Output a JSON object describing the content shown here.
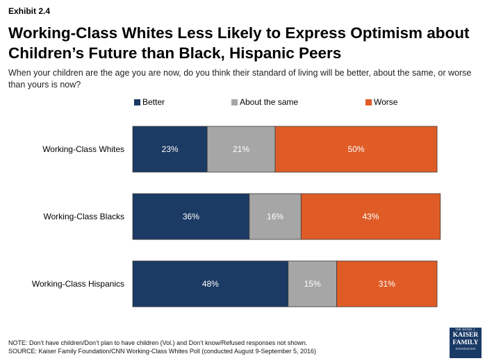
{
  "header": {
    "exhibit": "Exhibit 2.4",
    "title": "Working-Class Whites Less Likely to Express Optimism about Children’s Future than Black, Hispanic Peers",
    "subtitle": "When your children are the age you are now, do you think their standard of living will be better, about the same, or worse than yours is now?"
  },
  "legend": [
    {
      "label": "Better",
      "color": "#1b3a64"
    },
    {
      "label": "About the same",
      "color": "#a6a6a6"
    },
    {
      "label": "Worse",
      "color": "#e05c27"
    }
  ],
  "chart_data": {
    "type": "bar",
    "orientation": "horizontal",
    "stacked": true,
    "categories": [
      "Working-Class Whites",
      "Working-Class Blacks",
      "Working-Class Hispanics"
    ],
    "series": [
      {
        "name": "Better",
        "values": [
          23,
          36,
          48
        ],
        "color": "#1b3a64"
      },
      {
        "name": "About the same",
        "values": [
          21,
          16,
          15
        ],
        "color": "#a6a6a6"
      },
      {
        "name": "Worse",
        "values": [
          50,
          43,
          31
        ],
        "color": "#e05c27"
      }
    ],
    "value_suffix": "%",
    "legend_position": "top",
    "grid": false
  },
  "footnote": {
    "note": "NOTE: Don’t have children/Don’t plan to have children (Vol.) and Don’t know/Refused responses not shown.",
    "source": "SOURCE: Kaiser Family Foundation/CNN Working-Class Whites Poll (conducted August 9-September 5, 2016)"
  },
  "logo": {
    "line1": "THE HENRY J.",
    "line2": "KAISER",
    "line3": "FAMILY",
    "line4": "FOUNDATION"
  }
}
